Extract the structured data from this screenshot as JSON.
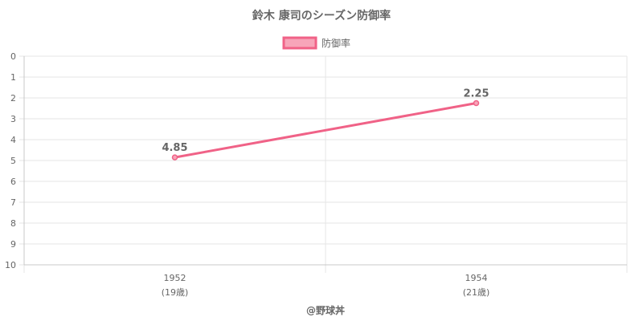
{
  "title": "鈴木 康司のシーズン防御率",
  "credit": "@野球丼",
  "colors": {
    "line": "#f06287",
    "legend_fill": "#f7a5b9",
    "grid": "#e6e6e6",
    "axis": "#c8c8c8",
    "text": "#666666"
  },
  "chart_data": {
    "type": "line",
    "title": "鈴木 康司のシーズン防御率",
    "x": [
      "1952",
      "1954"
    ],
    "x_sublabels": [
      "(19歳)",
      "(21歳)"
    ],
    "series": [
      {
        "name": "防御率",
        "values": [
          4.85,
          2.25
        ],
        "data_labels": [
          "4.85",
          "2.25"
        ]
      }
    ],
    "ylim": [
      0,
      10
    ],
    "y_inverted": true,
    "y_ticks": [
      "0",
      "1",
      "2",
      "3",
      "4",
      "5",
      "6",
      "7",
      "8",
      "9",
      "10"
    ],
    "legend": "top-center",
    "grid": true
  }
}
